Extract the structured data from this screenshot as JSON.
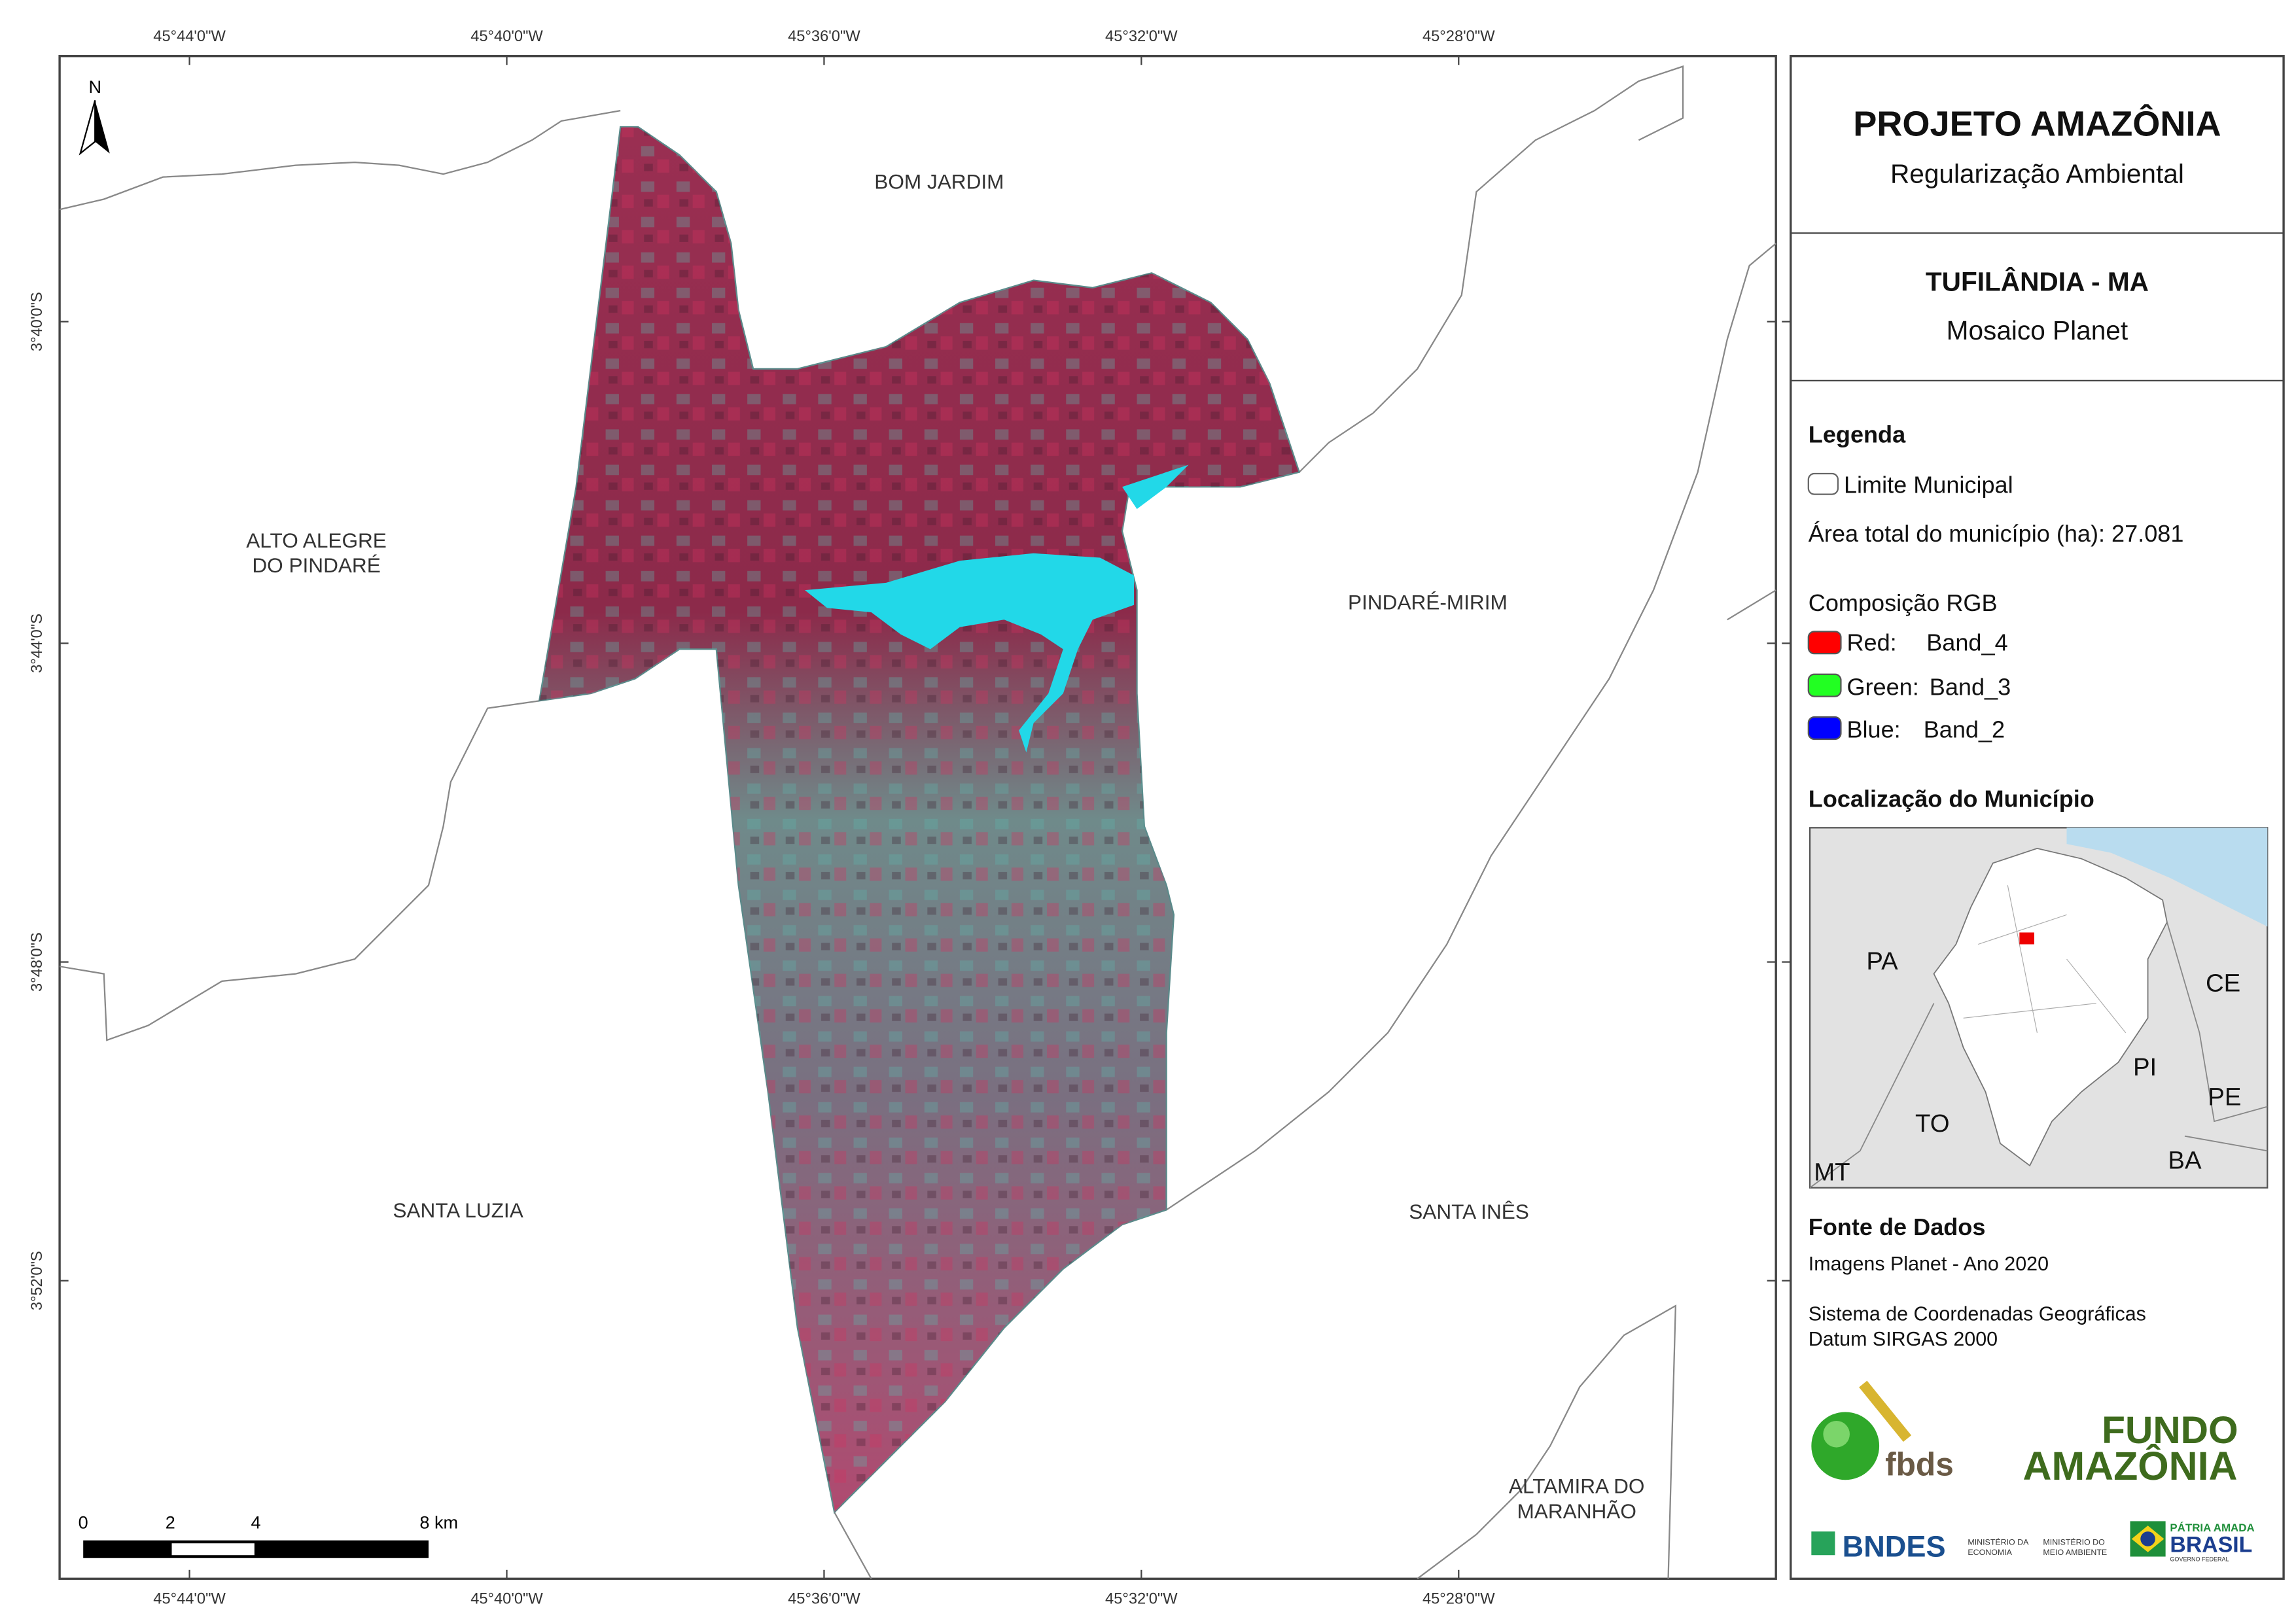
{
  "map": {
    "north_arrow": "N",
    "lon_labels": [
      "45°44'0\"W",
      "45°40'0\"W",
      "45°36'0\"W",
      "45°32'0\"W",
      "45°28'0\"W"
    ],
    "lat_labels": [
      "3°40'0\"S",
      "3°44'0\"S",
      "3°48'0\"S",
      "3°52'0\"S"
    ],
    "neighbors": {
      "bom_jardim": [
        "BOM JARDIM"
      ],
      "alto_alegre": [
        "ALTO ALEGRE",
        "DO PINDARÉ"
      ],
      "pindare_mirim": [
        "PINDARÉ-MIRIM"
      ],
      "santa_luzia": [
        "SANTA LUZIA"
      ],
      "santa_ines": [
        "SANTA INÊS"
      ],
      "altamira": [
        "ALTAMIRA DO",
        "MARANHÃO"
      ]
    },
    "scale_labels": [
      "0",
      "2",
      "4",
      "8 km"
    ]
  },
  "panel": {
    "title": "PROJETO AMAZÔNIA",
    "subtitle": "Regularização Ambiental",
    "municipality": "TUFILÂNDIA - MA",
    "imagery": "Mosaico Planet",
    "legend": {
      "heading": "Legenda",
      "boundary": "Limite Municipal",
      "area": "Área total do município (ha): 27.081",
      "rgb_heading": "Composição RGB",
      "bands": [
        {
          "channel": "Red:",
          "band": "Band_4"
        },
        {
          "channel": "Green:",
          "band": "Band_3"
        },
        {
          "channel": "Blue:",
          "band": "Band_2"
        }
      ]
    },
    "locator": {
      "heading": "Localização do Município",
      "labels": [
        "PA",
        "CE",
        "PI",
        "PE",
        "TO",
        "BA",
        "MT"
      ]
    },
    "sources": {
      "heading": "Fonte de Dados",
      "lines": [
        "Imagens Planet - Ano 2020",
        "Sistema de Coordenadas Geográficas",
        "Datum SIRGAS 2000"
      ]
    },
    "logos": {
      "fbds": "fbds",
      "fundo": "FUNDO",
      "amazonia": "AMAZÔNIA",
      "bndes": "BNDES",
      "min_economia": [
        "MINISTÉRIO DA",
        "ECONOMIA"
      ],
      "min_ambiente": [
        "MINISTÉRIO DO",
        "MEIO AMBIENTE"
      ],
      "patria": "PÁTRIA AMADA",
      "brasil": "BRASIL",
      "governo": "GOVERNO FEDERAL"
    }
  }
}
